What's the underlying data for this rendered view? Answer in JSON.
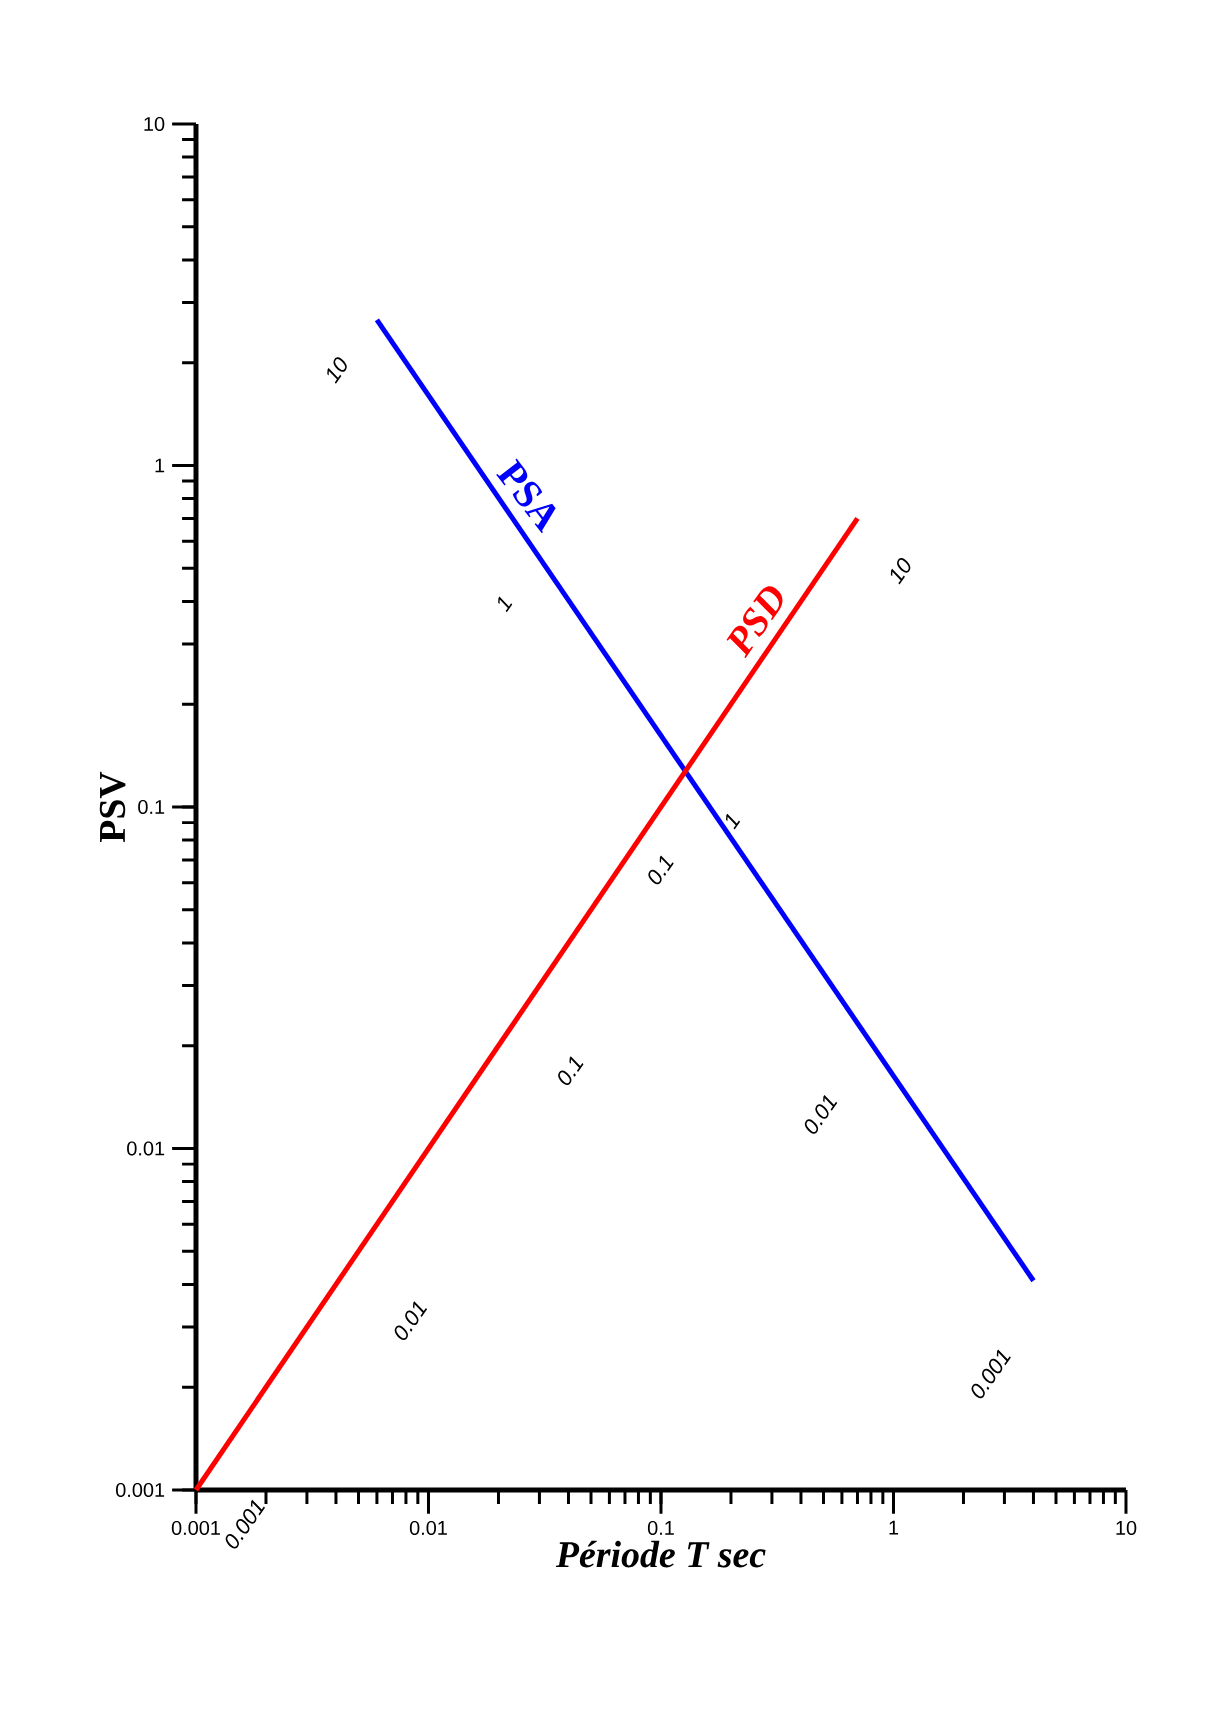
{
  "chart_data": {
    "type": "line",
    "xlabel": "Période T sec",
    "ylabel": "PSV",
    "log": "xy",
    "xlim": [
      0.001,
      10
    ],
    "ylim": [
      0.001,
      10
    ],
    "xticks": [
      0.001,
      0.01,
      0.1,
      1,
      10
    ],
    "yticks": [
      0.001,
      0.01,
      0.1,
      1,
      10
    ],
    "grid": false,
    "legend": false,
    "marker": "none",
    "line_style": "solid",
    "series": [
      {
        "name": "PSA",
        "color": "#0000ff",
        "x": [
          0.006,
          4
        ],
        "values": [
          2.67,
          0.0041
        ]
      },
      {
        "name": "PSD",
        "color": "#ff0000",
        "x": [
          0.001,
          0.7
        ],
        "values": [
          0.001,
          0.7
        ]
      }
    ],
    "annotations": [
      "10",
      "1",
      "1",
      "0.01",
      "0.001",
      "0.001",
      "0.01",
      "0.1",
      "0.1",
      "10"
    ]
  }
}
